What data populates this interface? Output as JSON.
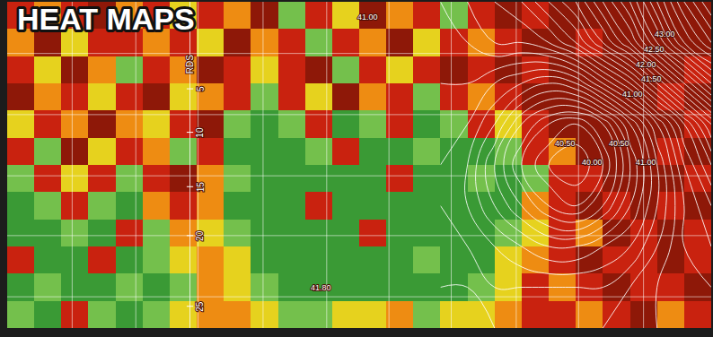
{
  "chart_data": {
    "type": "heatmap",
    "title": "HEAT MAPS",
    "x": [
      0.5,
      1.5,
      2.5,
      3.5,
      4.5,
      5.5,
      6.5,
      7.5,
      8.5,
      9.5,
      10.5,
      11.5,
      12.5,
      13.5,
      14.5,
      15.5,
      16.5,
      17.5,
      18.5,
      19.5,
      20.5,
      21.5,
      22.5,
      23.5,
      24.5,
      25.5
    ],
    "y": [
      0.5,
      1.5,
      2.5,
      3.5,
      4.5,
      5.5,
      6.5,
      7.5,
      8.5,
      9.5,
      10.5,
      11.5
    ],
    "z": [
      [
        4,
        3,
        4,
        5,
        3,
        4,
        2,
        4,
        3,
        5,
        1,
        4,
        2,
        5,
        3,
        4,
        1,
        4,
        5,
        4,
        5,
        5,
        5,
        5,
        5,
        5
      ],
      [
        3,
        5,
        2,
        4,
        4,
        3,
        4,
        2,
        5,
        3,
        4,
        1,
        4,
        3,
        5,
        2,
        4,
        3,
        4,
        5,
        5,
        4,
        5,
        5,
        5,
        5
      ],
      [
        4,
        2,
        5,
        3,
        1,
        4,
        3,
        5,
        4,
        2,
        4,
        5,
        1,
        4,
        2,
        4,
        5,
        4,
        5,
        4,
        5,
        5,
        5,
        5,
        5,
        4
      ],
      [
        5,
        3,
        4,
        2,
        4,
        5,
        2,
        3,
        4,
        1,
        4,
        2,
        5,
        3,
        4,
        1,
        4,
        3,
        4,
        5,
        5,
        5,
        5,
        5,
        4,
        5
      ],
      [
        2,
        4,
        3,
        5,
        3,
        2,
        4,
        5,
        1,
        0,
        1,
        4,
        0,
        1,
        4,
        0,
        1,
        4,
        2,
        4,
        5,
        5,
        5,
        5,
        5,
        4
      ],
      [
        4,
        1,
        5,
        2,
        4,
        3,
        1,
        4,
        0,
        0,
        0,
        1,
        4,
        0,
        0,
        1,
        0,
        0,
        1,
        4,
        3,
        5,
        5,
        5,
        4,
        5
      ],
      [
        1,
        4,
        2,
        4,
        1,
        4,
        5,
        3,
        1,
        0,
        0,
        0,
        0,
        0,
        4,
        0,
        0,
        1,
        0,
        1,
        4,
        4,
        5,
        5,
        5,
        4
      ],
      [
        0,
        1,
        4,
        1,
        0,
        3,
        4,
        3,
        0,
        0,
        0,
        4,
        0,
        0,
        0,
        0,
        0,
        0,
        0,
        3,
        4,
        5,
        4,
        5,
        4,
        5
      ],
      [
        0,
        0,
        1,
        0,
        4,
        1,
        3,
        2,
        1,
        0,
        0,
        0,
        0,
        4,
        0,
        0,
        0,
        0,
        1,
        2,
        4,
        3,
        5,
        4,
        5,
        4
      ],
      [
        4,
        0,
        0,
        4,
        0,
        1,
        2,
        3,
        2,
        0,
        0,
        0,
        0,
        0,
        0,
        1,
        0,
        0,
        2,
        3,
        4,
        5,
        4,
        4,
        5,
        4
      ],
      [
        0,
        1,
        0,
        0,
        1,
        0,
        1,
        3,
        2,
        1,
        0,
        0,
        0,
        0,
        0,
        0,
        0,
        1,
        2,
        4,
        3,
        4,
        5,
        4,
        4,
        5
      ],
      [
        1,
        0,
        4,
        1,
        0,
        1,
        2,
        3,
        3,
        2,
        1,
        1,
        2,
        2,
        3,
        1,
        2,
        2,
        3,
        4,
        4,
        3,
        4,
        5,
        3,
        4
      ]
    ],
    "zlim": [
      0,
      5
    ],
    "colors": [
      "#3a9a35",
      "#74c04c",
      "#e6d21e",
      "#ee8c12",
      "#c9220f",
      "#8e1808"
    ],
    "xlim": [
      0,
      26
    ],
    "ylim": [
      12,
      0
    ],
    "xticks": [
      2.4,
      4.75,
      7.05,
      9.45,
      11.8,
      14.1,
      16.4,
      18.8,
      21.1,
      23.5
    ],
    "yticks": [
      1.9,
      4.15,
      6.4,
      8.6,
      10.85
    ],
    "grid": true,
    "tick_labels": false,
    "elevation": {
      "x": [
        16,
        17,
        18,
        19,
        20,
        21,
        22,
        23,
        24,
        25,
        26
      ],
      "y": [
        0,
        1.5,
        3,
        4.5,
        6,
        7.5,
        9,
        10.5,
        12
      ],
      "z": [
        [
          41.2,
          41.3,
          41.4,
          41.5,
          41.7,
          41.9,
          42.2,
          42.5,
          42.9,
          43.3,
          43.6
        ],
        [
          41.2,
          41.2,
          41.3,
          41.3,
          41.4,
          41.6,
          41.9,
          42.2,
          42.6,
          43.0,
          43.3
        ],
        [
          41.1,
          41.1,
          41.0,
          40.9,
          40.8,
          40.9,
          41.2,
          41.5,
          41.9,
          42.3,
          42.7
        ],
        [
          41.1,
          41.0,
          40.8,
          40.5,
          40.3,
          40.2,
          40.4,
          40.8,
          41.2,
          41.6,
          42.0
        ],
        [
          41.0,
          40.9,
          40.6,
          40.3,
          40.1,
          40.0,
          40.2,
          40.6,
          41.0,
          41.4,
          41.7
        ],
        [
          41.0,
          40.9,
          40.7,
          40.5,
          40.3,
          40.2,
          40.4,
          40.7,
          41.0,
          41.3,
          41.5
        ],
        [
          41.1,
          41.0,
          40.9,
          40.8,
          40.7,
          40.7,
          40.8,
          40.9,
          41.1,
          41.3,
          41.4
        ],
        [
          41.1,
          41.1,
          41.0,
          41.0,
          41.0,
          41.0,
          41.0,
          41.1,
          41.2,
          41.3,
          41.3
        ],
        [
          41.2,
          41.2,
          41.1,
          41.1,
          41.1,
          41.1,
          41.1,
          41.2,
          41.2,
          41.3,
          41.3
        ]
      ],
      "start": 40.0,
      "end": 43.5,
      "step": 0.1
    },
    "ruler": {
      "x": 6.75,
      "title": "RDS",
      "marks": [
        {
          "value": 5,
          "y": 3.2
        },
        {
          "value": 10,
          "y": 4.8
        },
        {
          "value": 15,
          "y": 6.8
        },
        {
          "value": 20,
          "y": 8.6
        },
        {
          "value": 25,
          "y": 11.2
        }
      ]
    },
    "annotations": [
      {
        "text": "41.00",
        "x": 13.3,
        "y": 0.57
      },
      {
        "text": "43.00",
        "x": 24.3,
        "y": 1.2
      },
      {
        "text": "42.50",
        "x": 23.9,
        "y": 1.75
      },
      {
        "text": "42.00",
        "x": 23.6,
        "y": 2.3
      },
      {
        "text": "41.50",
        "x": 23.8,
        "y": 2.85
      },
      {
        "text": "41.00",
        "x": 23.1,
        "y": 3.4
      },
      {
        "text": "40.50",
        "x": 20.6,
        "y": 5.2
      },
      {
        "text": "40.00",
        "x": 21.6,
        "y": 5.9
      },
      {
        "text": "40.50",
        "x": 22.6,
        "y": 5.2
      },
      {
        "text": "41.00",
        "x": 23.6,
        "y": 5.9
      },
      {
        "text": "41.80",
        "x": 11.6,
        "y": 10.5
      }
    ]
  }
}
